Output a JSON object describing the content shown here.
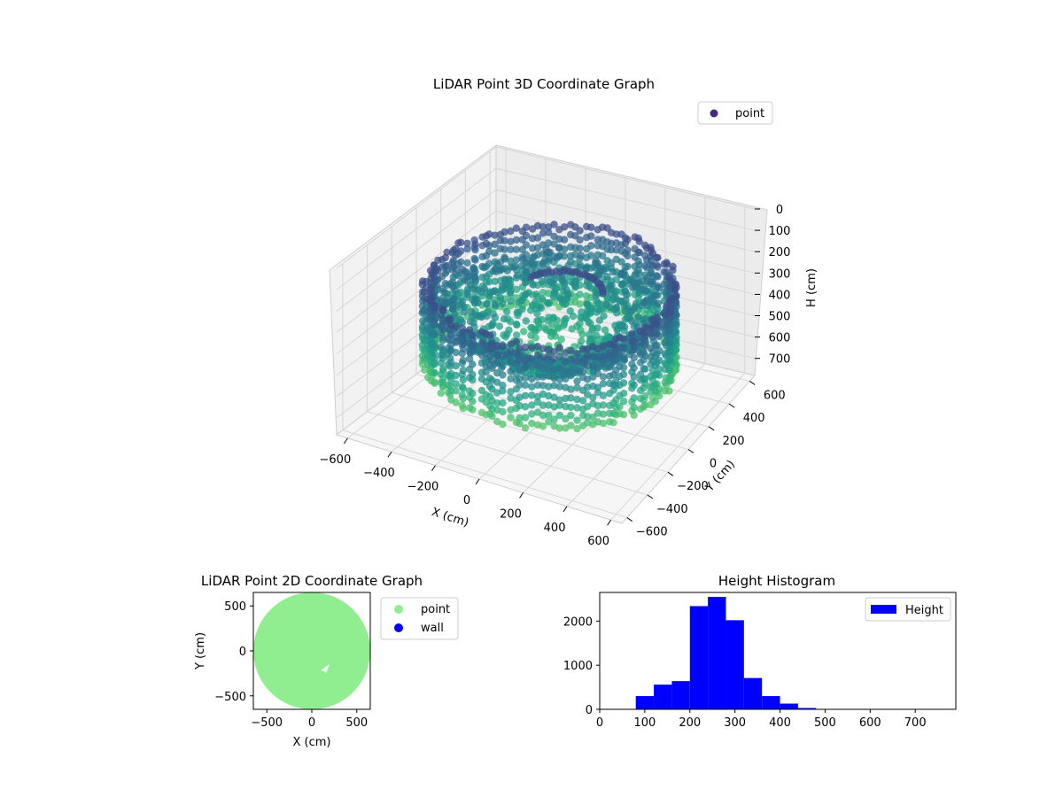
{
  "chart_data": [
    {
      "type": "scatter3d",
      "title": "LiDAR Point 3D Coordinate Graph",
      "xlabel": "X (cm)",
      "ylabel": "Y (cm)",
      "zlabel": "H (cm)",
      "xlim": [
        -650,
        650
      ],
      "ylim": [
        -650,
        650
      ],
      "zlim": [
        0,
        780
      ],
      "z_inverted": true,
      "xticks": [
        -600,
        -400,
        -200,
        0,
        200,
        400,
        600
      ],
      "yticks": [
        -600,
        -400,
        -200,
        0,
        200,
        400,
        600
      ],
      "zticks": [
        0,
        100,
        200,
        300,
        400,
        500,
        600,
        700
      ],
      "colormap": "viridis",
      "legend": {
        "label": "point",
        "placement": "top-right",
        "color": "#482878"
      },
      "shape": {
        "wall_radius": 520,
        "wall_height_range": [
          180,
          560
        ],
        "floor_center_height": 580,
        "inner_arc_radius": 180,
        "inner_arc_height": 180
      }
    },
    {
      "type": "scatter",
      "title": "LiDAR Point 2D Coordinate Graph",
      "xlabel": "X (cm)",
      "ylabel": "Y (cm)",
      "xlim": [
        -650,
        650
      ],
      "ylim": [
        -650,
        650
      ],
      "xticks": [
        -500,
        0,
        500
      ],
      "yticks": [
        -500,
        0,
        500
      ],
      "series": [
        {
          "name": "point",
          "color": "#90ee90",
          "region": "disc",
          "radius": 650
        },
        {
          "name": "wall",
          "color": "#0000ff",
          "region": "none"
        }
      ],
      "legend_placement": "outside-right"
    },
    {
      "type": "bar",
      "title": "Height Histogram",
      "xlim": [
        0,
        790
      ],
      "ylim": [
        0,
        2650
      ],
      "xticks": [
        0,
        100,
        200,
        300,
        400,
        500,
        600,
        700
      ],
      "yticks": [
        0,
        1000,
        2000
      ],
      "bin_width": 40,
      "bins": [
        80,
        120,
        160,
        200,
        240,
        280,
        320,
        360,
        400,
        440,
        480,
        520,
        560,
        600,
        640,
        680,
        720,
        760
      ],
      "values": [
        300,
        560,
        640,
        2340,
        2550,
        2020,
        710,
        300,
        130,
        30,
        5,
        3,
        2,
        2,
        1,
        1,
        1,
        1
      ],
      "series": [
        {
          "name": "Height",
          "color": "#0000ff"
        }
      ],
      "legend_placement": "top-right"
    }
  ]
}
